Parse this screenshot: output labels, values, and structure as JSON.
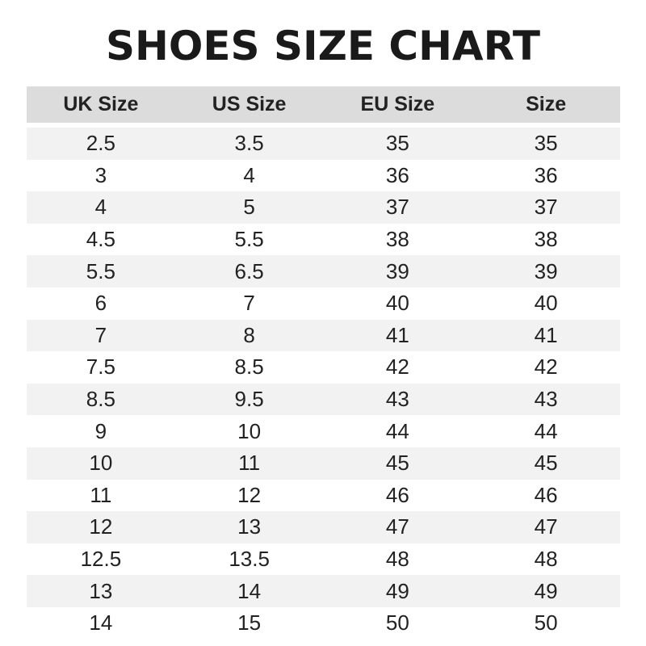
{
  "title": "SHOES SIZE CHART",
  "table": {
    "headers": [
      "UK Size",
      "US Size",
      "EU Size",
      "Size"
    ],
    "rows": [
      [
        "2.5",
        "3.5",
        "35",
        "35"
      ],
      [
        "3",
        "4",
        "36",
        "36"
      ],
      [
        "4",
        "5",
        "37",
        "37"
      ],
      [
        "4.5",
        "5.5",
        "38",
        "38"
      ],
      [
        "5.5",
        "6.5",
        "39",
        "39"
      ],
      [
        "6",
        "7",
        "40",
        "40"
      ],
      [
        "7",
        "8",
        "41",
        "41"
      ],
      [
        "7.5",
        "8.5",
        "42",
        "42"
      ],
      [
        "8.5",
        "9.5",
        "43",
        "43"
      ],
      [
        "9",
        "10",
        "44",
        "44"
      ],
      [
        "10",
        "11",
        "45",
        "45"
      ],
      [
        "11",
        "12",
        "46",
        "46"
      ],
      [
        "12",
        "13",
        "47",
        "47"
      ],
      [
        "12.5",
        "13.5",
        "48",
        "48"
      ],
      [
        "13",
        "14",
        "49",
        "49"
      ],
      [
        "14",
        "15",
        "50",
        "50"
      ]
    ]
  },
  "colors": {
    "header_bg": "#dcdcdc",
    "stripe_bg": "#f2f2f2",
    "text": "#1a1a1a"
  }
}
